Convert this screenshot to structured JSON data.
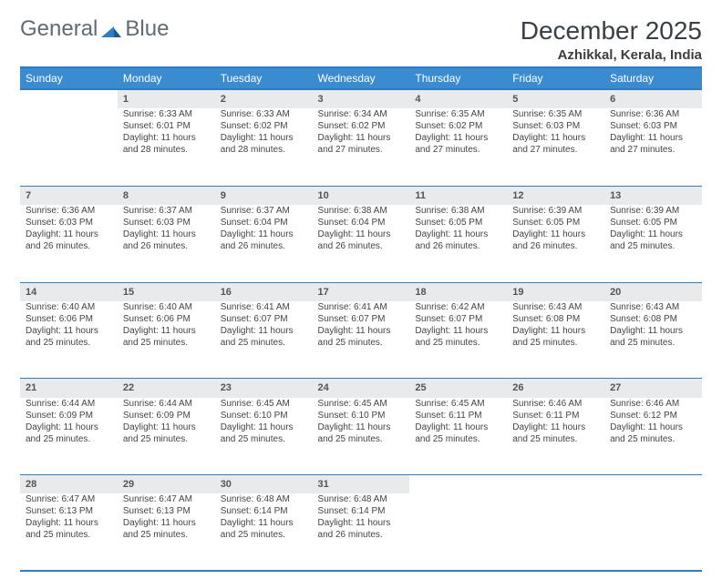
{
  "brand": {
    "part1": "General",
    "part2": "Blue"
  },
  "title": "December 2025",
  "location": "Azhikkal, Kerala, India",
  "colors": {
    "header_bg": "#3b8bd1",
    "border": "#2f7cc0",
    "daynum_bg": "#e9eaec",
    "text": "#444444"
  },
  "weekdays": [
    "Sunday",
    "Monday",
    "Tuesday",
    "Wednesday",
    "Thursday",
    "Friday",
    "Saturday"
  ],
  "weeks": [
    [
      null,
      {
        "n": "1",
        "sr": "Sunrise: 6:33 AM",
        "ss": "Sunset: 6:01 PM",
        "dl": "Daylight: 11 hours and 28 minutes."
      },
      {
        "n": "2",
        "sr": "Sunrise: 6:33 AM",
        "ss": "Sunset: 6:02 PM",
        "dl": "Daylight: 11 hours and 28 minutes."
      },
      {
        "n": "3",
        "sr": "Sunrise: 6:34 AM",
        "ss": "Sunset: 6:02 PM",
        "dl": "Daylight: 11 hours and 27 minutes."
      },
      {
        "n": "4",
        "sr": "Sunrise: 6:35 AM",
        "ss": "Sunset: 6:02 PM",
        "dl": "Daylight: 11 hours and 27 minutes."
      },
      {
        "n": "5",
        "sr": "Sunrise: 6:35 AM",
        "ss": "Sunset: 6:03 PM",
        "dl": "Daylight: 11 hours and 27 minutes."
      },
      {
        "n": "6",
        "sr": "Sunrise: 6:36 AM",
        "ss": "Sunset: 6:03 PM",
        "dl": "Daylight: 11 hours and 27 minutes."
      }
    ],
    [
      {
        "n": "7",
        "sr": "Sunrise: 6:36 AM",
        "ss": "Sunset: 6:03 PM",
        "dl": "Daylight: 11 hours and 26 minutes."
      },
      {
        "n": "8",
        "sr": "Sunrise: 6:37 AM",
        "ss": "Sunset: 6:03 PM",
        "dl": "Daylight: 11 hours and 26 minutes."
      },
      {
        "n": "9",
        "sr": "Sunrise: 6:37 AM",
        "ss": "Sunset: 6:04 PM",
        "dl": "Daylight: 11 hours and 26 minutes."
      },
      {
        "n": "10",
        "sr": "Sunrise: 6:38 AM",
        "ss": "Sunset: 6:04 PM",
        "dl": "Daylight: 11 hours and 26 minutes."
      },
      {
        "n": "11",
        "sr": "Sunrise: 6:38 AM",
        "ss": "Sunset: 6:05 PM",
        "dl": "Daylight: 11 hours and 26 minutes."
      },
      {
        "n": "12",
        "sr": "Sunrise: 6:39 AM",
        "ss": "Sunset: 6:05 PM",
        "dl": "Daylight: 11 hours and 26 minutes."
      },
      {
        "n": "13",
        "sr": "Sunrise: 6:39 AM",
        "ss": "Sunset: 6:05 PM",
        "dl": "Daylight: 11 hours and 25 minutes."
      }
    ],
    [
      {
        "n": "14",
        "sr": "Sunrise: 6:40 AM",
        "ss": "Sunset: 6:06 PM",
        "dl": "Daylight: 11 hours and 25 minutes."
      },
      {
        "n": "15",
        "sr": "Sunrise: 6:40 AM",
        "ss": "Sunset: 6:06 PM",
        "dl": "Daylight: 11 hours and 25 minutes."
      },
      {
        "n": "16",
        "sr": "Sunrise: 6:41 AM",
        "ss": "Sunset: 6:07 PM",
        "dl": "Daylight: 11 hours and 25 minutes."
      },
      {
        "n": "17",
        "sr": "Sunrise: 6:41 AM",
        "ss": "Sunset: 6:07 PM",
        "dl": "Daylight: 11 hours and 25 minutes."
      },
      {
        "n": "18",
        "sr": "Sunrise: 6:42 AM",
        "ss": "Sunset: 6:07 PM",
        "dl": "Daylight: 11 hours and 25 minutes."
      },
      {
        "n": "19",
        "sr": "Sunrise: 6:43 AM",
        "ss": "Sunset: 6:08 PM",
        "dl": "Daylight: 11 hours and 25 minutes."
      },
      {
        "n": "20",
        "sr": "Sunrise: 6:43 AM",
        "ss": "Sunset: 6:08 PM",
        "dl": "Daylight: 11 hours and 25 minutes."
      }
    ],
    [
      {
        "n": "21",
        "sr": "Sunrise: 6:44 AM",
        "ss": "Sunset: 6:09 PM",
        "dl": "Daylight: 11 hours and 25 minutes."
      },
      {
        "n": "22",
        "sr": "Sunrise: 6:44 AM",
        "ss": "Sunset: 6:09 PM",
        "dl": "Daylight: 11 hours and 25 minutes."
      },
      {
        "n": "23",
        "sr": "Sunrise: 6:45 AM",
        "ss": "Sunset: 6:10 PM",
        "dl": "Daylight: 11 hours and 25 minutes."
      },
      {
        "n": "24",
        "sr": "Sunrise: 6:45 AM",
        "ss": "Sunset: 6:10 PM",
        "dl": "Daylight: 11 hours and 25 minutes."
      },
      {
        "n": "25",
        "sr": "Sunrise: 6:45 AM",
        "ss": "Sunset: 6:11 PM",
        "dl": "Daylight: 11 hours and 25 minutes."
      },
      {
        "n": "26",
        "sr": "Sunrise: 6:46 AM",
        "ss": "Sunset: 6:11 PM",
        "dl": "Daylight: 11 hours and 25 minutes."
      },
      {
        "n": "27",
        "sr": "Sunrise: 6:46 AM",
        "ss": "Sunset: 6:12 PM",
        "dl": "Daylight: 11 hours and 25 minutes."
      }
    ],
    [
      {
        "n": "28",
        "sr": "Sunrise: 6:47 AM",
        "ss": "Sunset: 6:13 PM",
        "dl": "Daylight: 11 hours and 25 minutes."
      },
      {
        "n": "29",
        "sr": "Sunrise: 6:47 AM",
        "ss": "Sunset: 6:13 PM",
        "dl": "Daylight: 11 hours and 25 minutes."
      },
      {
        "n": "30",
        "sr": "Sunrise: 6:48 AM",
        "ss": "Sunset: 6:14 PM",
        "dl": "Daylight: 11 hours and 25 minutes."
      },
      {
        "n": "31",
        "sr": "Sunrise: 6:48 AM",
        "ss": "Sunset: 6:14 PM",
        "dl": "Daylight: 11 hours and 26 minutes."
      },
      null,
      null,
      null
    ]
  ]
}
